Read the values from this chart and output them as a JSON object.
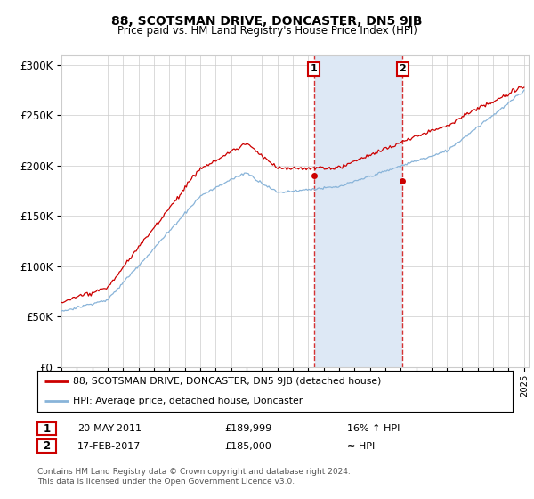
{
  "title": "88, SCOTSMAN DRIVE, DONCASTER, DN5 9JB",
  "subtitle": "Price paid vs. HM Land Registry's House Price Index (HPI)",
  "ylabel_ticks": [
    "£0",
    "£50K",
    "£100K",
    "£150K",
    "£200K",
    "£250K",
    "£300K"
  ],
  "ytick_values": [
    0,
    50000,
    100000,
    150000,
    200000,
    250000,
    300000
  ],
  "ylim": [
    0,
    310000
  ],
  "x_start_year": 1995,
  "x_end_year": 2025,
  "marker1_date": 2011.38,
  "marker1_price": 189999,
  "marker1_text": "20-MAY-2011",
  "marker1_hpi_text": "16% ↑ HPI",
  "marker2_date": 2017.12,
  "marker2_price": 185000,
  "marker2_text": "17-FEB-2017",
  "marker2_hpi_text": "≈ HPI",
  "red_color": "#cc0000",
  "blue_color": "#89b4d9",
  "shaded_color": "#dde8f5",
  "grid_color": "#cccccc",
  "background_color": "#ffffff",
  "legend_entry1": "88, SCOTSMAN DRIVE, DONCASTER, DN5 9JB (detached house)",
  "legend_entry2": "HPI: Average price, detached house, Doncaster",
  "footer": "Contains HM Land Registry data © Crown copyright and database right 2024.\nThis data is licensed under the Open Government Licence v3.0."
}
